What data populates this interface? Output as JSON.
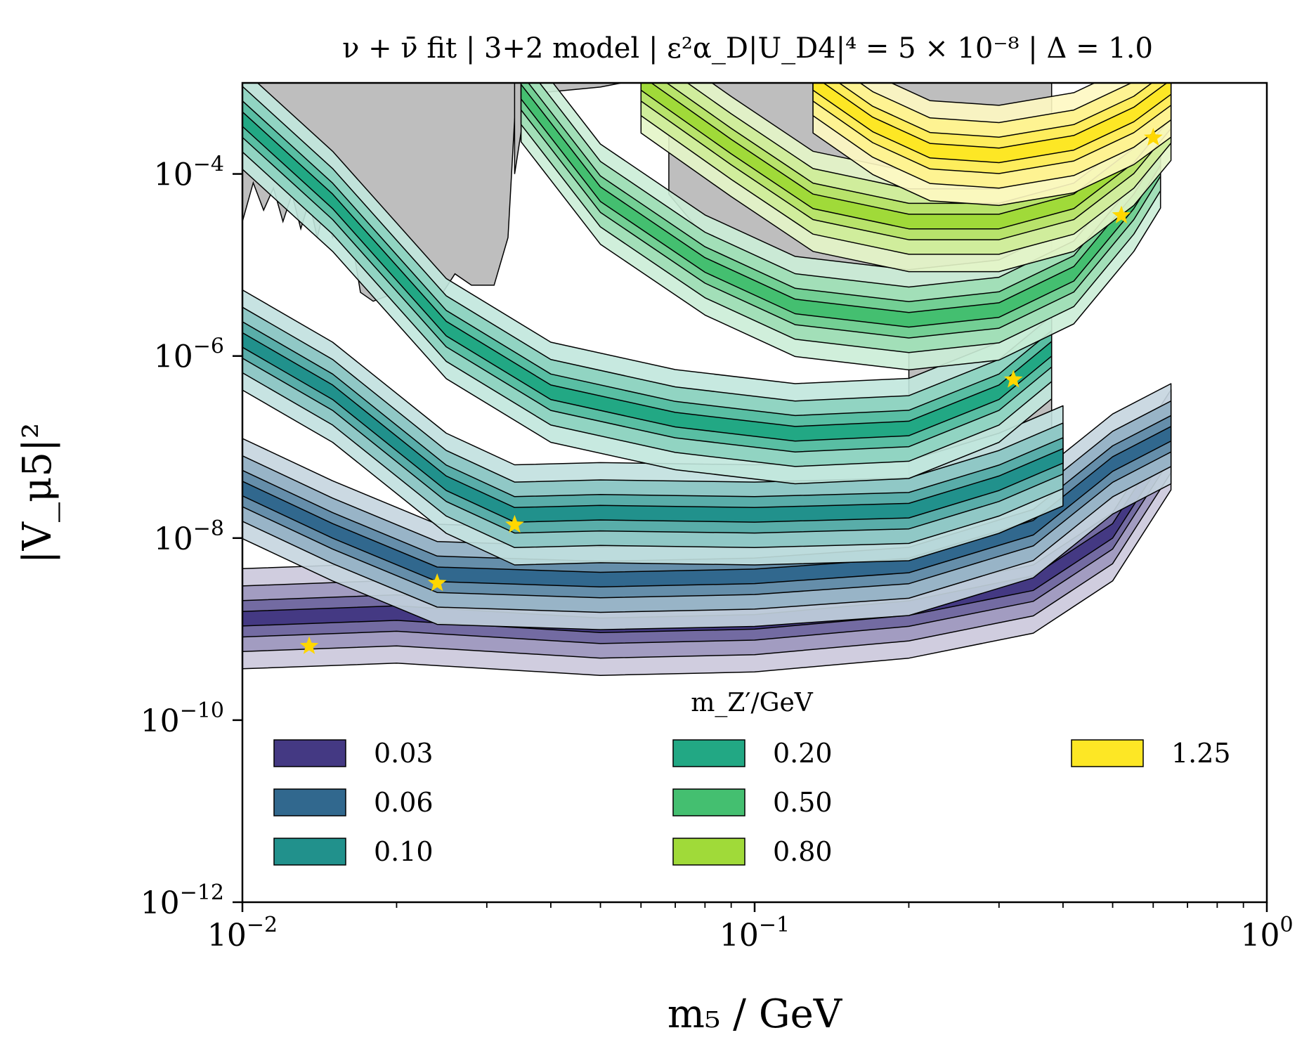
{
  "chart_data": {
    "type": "area",
    "title": "ν + ν̄ fit | 3+2 model | ε²α_D|U_D4|⁴ = 5 × 10⁻⁸ | Δ = 1.0",
    "xlabel": "m₅ / GeV",
    "ylabel": "|V_μ5|²",
    "xscale": "log",
    "yscale": "log",
    "xlim": [
      0.01,
      1.0
    ],
    "ylim": [
      1e-12,
      0.001
    ],
    "x_ticks": [
      {
        "value": 0.01,
        "base": "10",
        "exp": "−2"
      },
      {
        "value": 0.1,
        "base": "10",
        "exp": "−1"
      },
      {
        "value": 1.0,
        "base": "10",
        "exp": "0"
      }
    ],
    "y_ticks": [
      {
        "value": 0.0001,
        "base": "10",
        "exp": "−4"
      },
      {
        "value": 1e-06,
        "base": "10",
        "exp": "−6"
      },
      {
        "value": 1e-08,
        "base": "10",
        "exp": "−8"
      },
      {
        "value": 1e-10,
        "base": "10",
        "exp": "−10"
      },
      {
        "value": 1e-12,
        "base": "10",
        "exp": "−12"
      }
    ],
    "legend_title": "m_Z′/GeV",
    "legend_position": "lower",
    "excluded_region_color": "#bebebe",
    "series": [
      {
        "name": "0.03",
        "color": "#443983",
        "best_fit": [
          0.0135,
          6.5e-10
        ],
        "band": [
          [
            0.01,
            1.3e-09
          ],
          [
            0.02,
            1.5e-09
          ],
          [
            0.05,
            1.1e-09
          ],
          [
            0.1,
            1.2e-09
          ],
          [
            0.2,
            1.7e-09
          ],
          [
            0.35,
            3.2e-09
          ],
          [
            0.5,
            1.2e-08
          ],
          [
            0.65,
            1.2e-07
          ]
        ]
      },
      {
        "name": "0.06",
        "color": "#31688e",
        "best_fit": [
          0.024,
          3.2e-09
        ],
        "band": [
          [
            0.01,
            3.5e-08
          ],
          [
            0.015,
            1.2e-08
          ],
          [
            0.024,
            4e-09
          ],
          [
            0.05,
            3.5e-09
          ],
          [
            0.1,
            3.8e-09
          ],
          [
            0.2,
            5e-09
          ],
          [
            0.35,
            1.3e-08
          ],
          [
            0.5,
            6.5e-08
          ],
          [
            0.65,
            1.4e-07
          ]
        ]
      },
      {
        "name": "0.10",
        "color": "#21918c",
        "best_fit": [
          0.034,
          1.4e-08
        ],
        "band": [
          [
            0.01,
            1.5e-06
          ],
          [
            0.015,
            4e-07
          ],
          [
            0.025,
            4e-08
          ],
          [
            0.034,
            1.8e-08
          ],
          [
            0.05,
            1.9e-08
          ],
          [
            0.1,
            1.8e-08
          ],
          [
            0.2,
            2e-08
          ],
          [
            0.3,
            4e-08
          ],
          [
            0.4,
            8e-08
          ]
        ]
      },
      {
        "name": "0.20",
        "color": "#22a884",
        "best_fit": [
          0.32,
          5.5e-07
        ],
        "band": [
          [
            0.01,
            0.0004
          ],
          [
            0.015,
            5e-05
          ],
          [
            0.025,
            2e-06
          ],
          [
            0.04,
            4e-07
          ],
          [
            0.07,
            2e-07
          ],
          [
            0.12,
            1.4e-07
          ],
          [
            0.2,
            1.6e-07
          ],
          [
            0.3,
            4e-07
          ],
          [
            0.38,
            1.2e-06
          ]
        ]
      },
      {
        "name": "0.50",
        "color": "#44bf70",
        "best_fit": [
          0.52,
          3.5e-05
        ],
        "band": [
          [
            0.035,
            0.0008
          ],
          [
            0.05,
            6e-05
          ],
          [
            0.08,
            1e-05
          ],
          [
            0.12,
            3.5e-06
          ],
          [
            0.2,
            2.5e-06
          ],
          [
            0.3,
            3.2e-06
          ],
          [
            0.42,
            8e-06
          ],
          [
            0.55,
            5e-05
          ],
          [
            0.62,
            0.00015
          ]
        ]
      },
      {
        "name": "0.80",
        "color": "#a0da39",
        "best_fit": [
          0.6,
          0.00025
        ],
        "band": [
          [
            0.06,
            0.001
          ],
          [
            0.09,
            0.0002
          ],
          [
            0.13,
            5e-05
          ],
          [
            0.2,
            3e-05
          ],
          [
            0.3,
            3e-05
          ],
          [
            0.42,
            5e-05
          ],
          [
            0.55,
            0.00016
          ],
          [
            0.65,
            0.0005
          ]
        ]
      },
      {
        "name": "1.25",
        "color": "#fde725",
        "best_fit": null,
        "band": [
          [
            0.13,
            0.001
          ],
          [
            0.17,
            0.00035
          ],
          [
            0.22,
            0.00018
          ],
          [
            0.3,
            0.00016
          ],
          [
            0.42,
            0.00022
          ],
          [
            0.55,
            0.00045
          ],
          [
            0.65,
            0.0009
          ]
        ]
      }
    ]
  }
}
